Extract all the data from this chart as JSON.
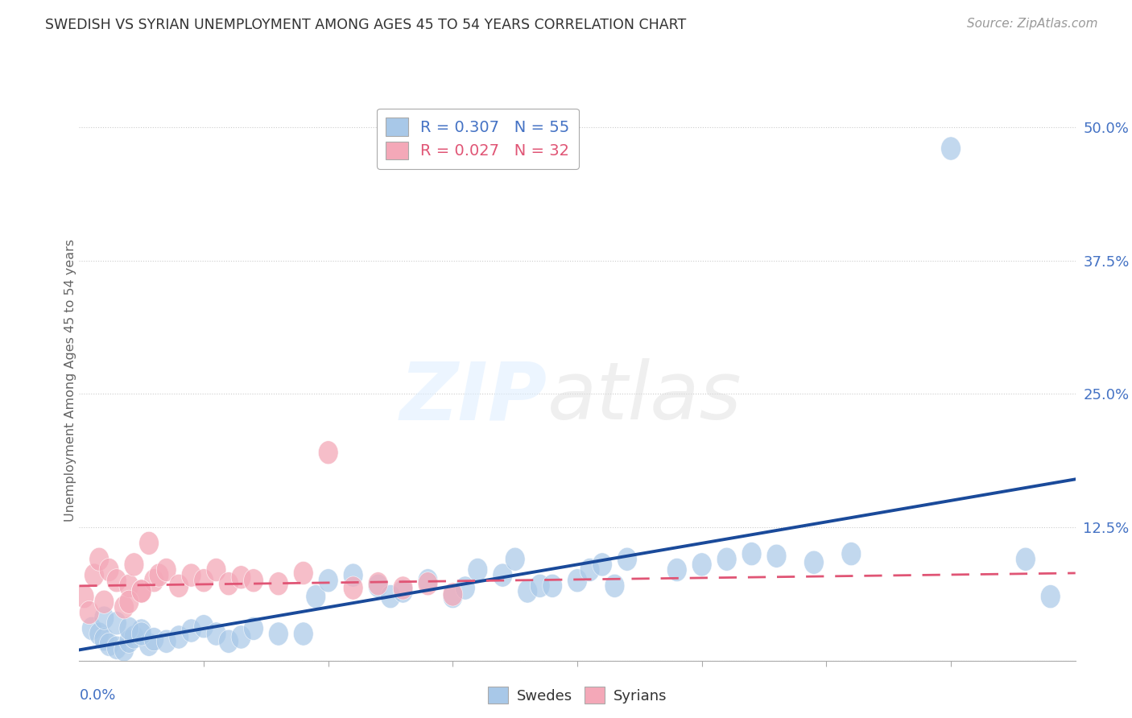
{
  "title": "SWEDISH VS SYRIAN UNEMPLOYMENT AMONG AGES 45 TO 54 YEARS CORRELATION CHART",
  "source": "Source: ZipAtlas.com",
  "ylabel": "Unemployment Among Ages 45 to 54 years",
  "xlim": [
    0.0,
    0.4
  ],
  "ylim": [
    0.0,
    0.525
  ],
  "yticks": [
    0.0,
    0.125,
    0.25,
    0.375,
    0.5
  ],
  "ytick_labels": [
    "",
    "12.5%",
    "25.0%",
    "37.5%",
    "50.0%"
  ],
  "swedes_R": 0.307,
  "swedes_N": 55,
  "syrians_R": 0.027,
  "syrians_N": 32,
  "blue_color": "#a8c8e8",
  "pink_color": "#f4a8b8",
  "blue_line_color": "#1a4a9a",
  "pink_line_color": "#e05575",
  "legend_label_blue": "Swedes",
  "legend_label_pink": "Syrians",
  "swedes_x": [
    0.005,
    0.008,
    0.01,
    0.012,
    0.015,
    0.018,
    0.02,
    0.022,
    0.025,
    0.028,
    0.01,
    0.015,
    0.02,
    0.025,
    0.03,
    0.035,
    0.04,
    0.045,
    0.05,
    0.055,
    0.06,
    0.065,
    0.07,
    0.08,
    0.09,
    0.095,
    0.1,
    0.11,
    0.12,
    0.125,
    0.13,
    0.14,
    0.15,
    0.155,
    0.16,
    0.17,
    0.175,
    0.18,
    0.185,
    0.19,
    0.2,
    0.205,
    0.21,
    0.215,
    0.22,
    0.24,
    0.25,
    0.26,
    0.27,
    0.28,
    0.295,
    0.31,
    0.35,
    0.38,
    0.39
  ],
  "swedes_y": [
    0.03,
    0.025,
    0.02,
    0.015,
    0.012,
    0.01,
    0.018,
    0.022,
    0.028,
    0.015,
    0.04,
    0.035,
    0.03,
    0.025,
    0.02,
    0.018,
    0.022,
    0.028,
    0.032,
    0.025,
    0.018,
    0.022,
    0.03,
    0.025,
    0.025,
    0.06,
    0.075,
    0.08,
    0.07,
    0.06,
    0.065,
    0.075,
    0.06,
    0.068,
    0.085,
    0.08,
    0.095,
    0.065,
    0.07,
    0.07,
    0.075,
    0.085,
    0.09,
    0.07,
    0.095,
    0.085,
    0.09,
    0.095,
    0.1,
    0.098,
    0.092,
    0.1,
    0.48,
    0.095,
    0.06
  ],
  "syrians_x": [
    0.002,
    0.004,
    0.006,
    0.008,
    0.01,
    0.012,
    0.015,
    0.018,
    0.02,
    0.022,
    0.025,
    0.028,
    0.03,
    0.032,
    0.035,
    0.04,
    0.045,
    0.05,
    0.055,
    0.06,
    0.065,
    0.07,
    0.08,
    0.09,
    0.1,
    0.11,
    0.12,
    0.13,
    0.14,
    0.15,
    0.02,
    0.025
  ],
  "syrians_y": [
    0.06,
    0.045,
    0.08,
    0.095,
    0.055,
    0.085,
    0.075,
    0.05,
    0.07,
    0.09,
    0.065,
    0.11,
    0.075,
    0.08,
    0.085,
    0.07,
    0.08,
    0.075,
    0.085,
    0.072,
    0.078,
    0.075,
    0.072,
    0.082,
    0.195,
    0.068,
    0.072,
    0.068,
    0.072,
    0.062,
    0.055,
    0.065
  ],
  "blue_line_start_y": 0.01,
  "blue_line_end_y": 0.17,
  "pink_line_start_y": 0.07,
  "pink_line_end_y": 0.082
}
